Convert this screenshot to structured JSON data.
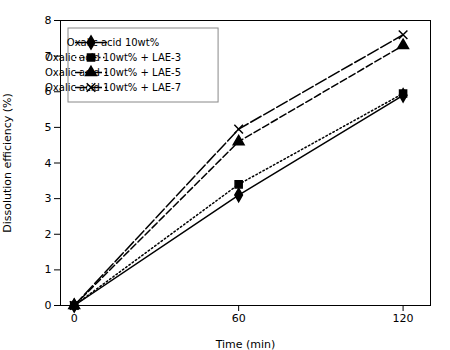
{
  "chart_data": {
    "type": "line",
    "xlabel": "Time (min)",
    "ylabel": "Dissolution efficiency (%)",
    "x": [
      0,
      60,
      120
    ],
    "series": [
      {
        "name": "Oxalic acid 10wt%",
        "color": "#000000",
        "values": [
          0,
          3.1,
          5.9
        ],
        "marker": "diamond",
        "line_style": "solid"
      },
      {
        "name": "Oxalic acid 10wt% + LAE-3",
        "color": "#000000",
        "values": [
          0,
          3.4,
          5.95
        ],
        "marker": "square",
        "line_style": "dotted"
      },
      {
        "name": "Oxalic acid 10wt% + LAE-5",
        "color": "#000000",
        "values": [
          0,
          4.6,
          7.3
        ],
        "marker": "triangle",
        "line_style": "dashed"
      },
      {
        "name": "Oxalic acid 10wt% + LAE-7",
        "color": "#000000",
        "values": [
          0,
          4.95,
          7.6
        ],
        "marker": "x",
        "line_style": "longdashed"
      }
    ],
    "xlim": [
      -5,
      130
    ],
    "ylim": [
      0,
      8
    ],
    "xticks": [
      0,
      60,
      120
    ],
    "yticks": [
      0,
      1,
      2,
      3,
      4,
      5,
      6,
      7,
      8
    ],
    "legend": "upper left",
    "grid": false
  }
}
